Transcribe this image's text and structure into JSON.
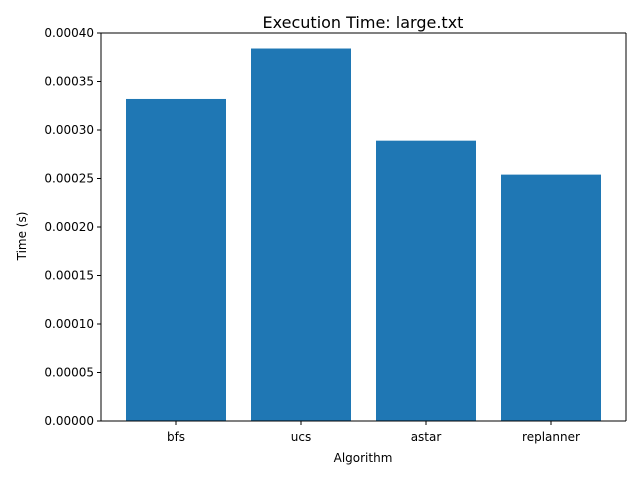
{
  "chart_data": {
    "type": "bar",
    "title": "Execution Time: large.txt",
    "xlabel": "Algorithm",
    "ylabel": "Time (s)",
    "categories": [
      "bfs",
      "ucs",
      "astar",
      "replanner"
    ],
    "values": [
      0.000332,
      0.000384,
      0.000289,
      0.000254
    ],
    "ylim": [
      0,
      0.0004
    ],
    "yticks": [
      0,
      5e-05,
      0.0001,
      0.00015,
      0.0002,
      0.00025,
      0.0003,
      0.00035,
      0.0004
    ],
    "ytick_labels": [
      "0.00000",
      "0.00005",
      "0.00010",
      "0.00015",
      "0.00020",
      "0.00025",
      "0.00030",
      "0.00035",
      "0.00040"
    ],
    "grid": false,
    "legend": "none",
    "bar_color": "#1f77b4"
  }
}
